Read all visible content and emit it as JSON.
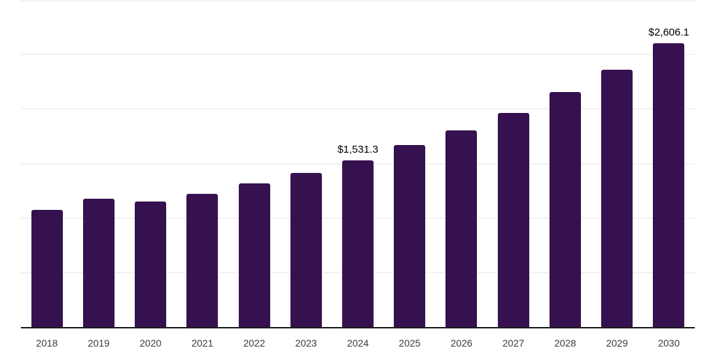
{
  "chart": {
    "background_color": "#ffffff",
    "bar_color": "#36114f",
    "axis_line_color": "#1a1a1a",
    "gridline_color": "#f2f2f2",
    "data_label_color": "#000000",
    "tick_label_color": "#3a3a3a"
  },
  "chart_data": {
    "type": "bar",
    "title": "",
    "xlabel": "",
    "ylabel": "",
    "categories": [
      "2018",
      "2019",
      "2020",
      "2021",
      "2022",
      "2023",
      "2024",
      "2025",
      "2026",
      "2027",
      "2028",
      "2029",
      "2030"
    ],
    "values": [
      1075,
      1175,
      1150,
      1225,
      1320,
      1415,
      1531.3,
      1670,
      1805,
      1965,
      2155,
      2360,
      2606.1
    ],
    "data_labels": {
      "2024": "$1,531.3",
      "2030": "$2,606.1"
    },
    "ylim": [
      0,
      3000
    ],
    "grid_values": [
      500,
      1000,
      1500,
      2000,
      2500,
      3000
    ],
    "grid": "horizontal",
    "legend": "none",
    "y_axis_labels": "none"
  }
}
